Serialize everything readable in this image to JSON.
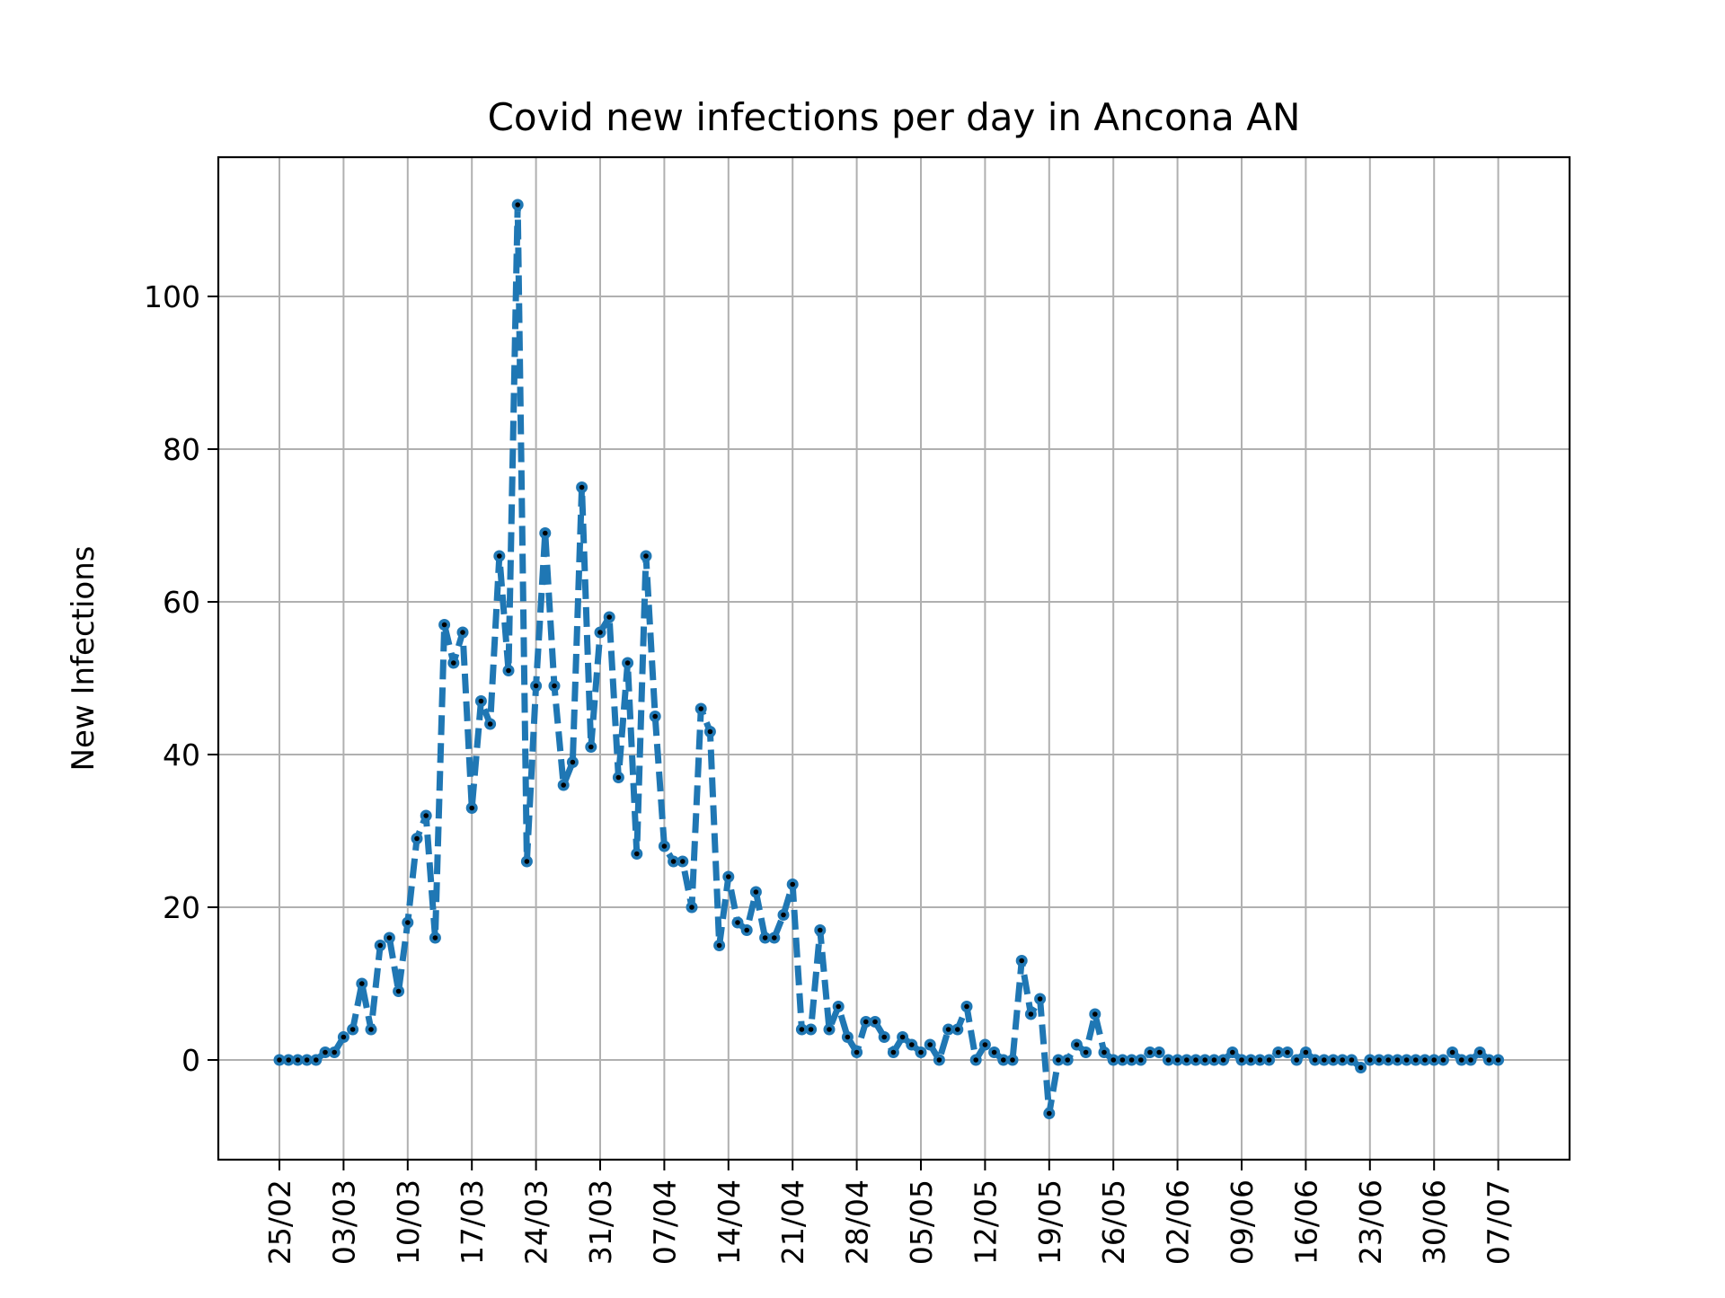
{
  "chart_data": {
    "type": "line",
    "title": "Covid new infections per day in Ancona AN",
    "xlabel": "",
    "ylabel": "New Infections",
    "start_date": "2020-02-25",
    "x_tick_labels": [
      "25/02",
      "03/03",
      "10/03",
      "17/03",
      "24/03",
      "31/03",
      "07/04",
      "14/04",
      "21/04",
      "28/04",
      "05/05",
      "12/05",
      "19/05",
      "26/05",
      "02/06",
      "09/06",
      "16/06",
      "23/06",
      "30/06",
      "07/07"
    ],
    "y_ticks": [
      0,
      20,
      40,
      60,
      80,
      100
    ],
    "ylim": [
      -13,
      118
    ],
    "grid": true,
    "series_style": {
      "color": "#1f77b4",
      "line": "dashed",
      "marker": "point",
      "marker_color": "#000000"
    },
    "series": [
      {
        "values": [
          0,
          0,
          0,
          0,
          0,
          1,
          1,
          3,
          4,
          10,
          4,
          15,
          16,
          9,
          18,
          29,
          32,
          16,
          57,
          52,
          56,
          33,
          47,
          44,
          66,
          51,
          112,
          26,
          49,
          69,
          49,
          36,
          39,
          75,
          41,
          56,
          58,
          37,
          52,
          27,
          66,
          45,
          28,
          26,
          26,
          20,
          46,
          43,
          15,
          24,
          18,
          17,
          22,
          16,
          16,
          19,
          23,
          4,
          4,
          17,
          4,
          7,
          3,
          1,
          5,
          5,
          3,
          1,
          3,
          2,
          1,
          2,
          0,
          4,
          4,
          7,
          0,
          2,
          1,
          0,
          0,
          13,
          6,
          8,
          -7,
          0,
          0,
          2,
          1,
          6,
          1,
          0,
          0,
          0,
          0,
          1,
          1,
          0,
          0,
          0,
          0,
          0,
          0,
          0,
          1,
          0,
          0,
          0,
          0,
          1,
          1,
          0,
          1,
          0,
          0,
          0,
          0,
          0,
          -1,
          0,
          0,
          0,
          0,
          0,
          0,
          0,
          0,
          0,
          1,
          0,
          0,
          1,
          0,
          0
        ]
      }
    ]
  }
}
